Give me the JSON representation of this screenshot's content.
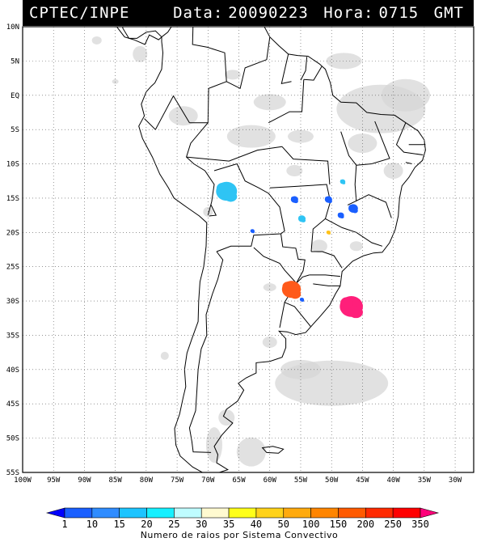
{
  "header": {
    "org": "CPTEC/INPE",
    "date_label": "Data:",
    "date_value": "20090223",
    "hour_label": "Hora:",
    "hour_value": "0715",
    "tz": "GMT"
  },
  "map": {
    "lat_labels": [
      "10N",
      "5N",
      "EQ",
      "5S",
      "10S",
      "15S",
      "20S",
      "25S",
      "30S",
      "35S",
      "40S",
      "45S",
      "50S",
      "55S"
    ],
    "lon_labels": [
      "100W",
      "95W",
      "90W",
      "85W",
      "80W",
      "75W",
      "70W",
      "65W",
      "60W",
      "55W",
      "50W",
      "45W",
      "40W",
      "35W",
      "30W"
    ],
    "lat_range": [
      10,
      -55
    ],
    "lon_range": [
      -100,
      -27
    ]
  },
  "colorbar": {
    "title": "Numero de raios por Sistema Convectivo",
    "ticks": [
      "1",
      "10",
      "15",
      "20",
      "25",
      "30",
      "35",
      "40",
      "50",
      "100",
      "150",
      "200",
      "250",
      "350"
    ],
    "colors": [
      "#0000ff",
      "#1a5fff",
      "#2f8cff",
      "#1dc4ff",
      "#16f0ff",
      "#bffcff",
      "#fffad0",
      "#ffff1a",
      "#ffd21a",
      "#ffaa0e",
      "#ff8500",
      "#ff5a00",
      "#ff2a00",
      "#ff0000",
      "#ff007a"
    ]
  },
  "systems": [
    {
      "name": "convective-system-bolivia",
      "color": "#2fc4f4",
      "lon": -67,
      "lat": -14,
      "size": 1.0
    },
    {
      "name": "convective-system-argentina-ne",
      "color": "#ff5a1a",
      "lon": -56.5,
      "lat": -28.3,
      "size": 0.9
    },
    {
      "name": "convective-system-atlantic-south",
      "color": "#ff1f7a",
      "lon": -46.8,
      "lat": -30.8,
      "size": 1.1
    },
    {
      "name": "convective-system-brazil-central-1",
      "color": "#1a5fff",
      "lon": -56,
      "lat": -15.2,
      "size": 0.35
    },
    {
      "name": "convective-system-brazil-central-2",
      "color": "#1a5fff",
      "lon": -50.5,
      "lat": -15.2,
      "size": 0.35
    },
    {
      "name": "convective-system-brazil-east",
      "color": "#1a5fff",
      "lon": -46.5,
      "lat": -16.5,
      "size": 0.45
    },
    {
      "name": "convective-system-brazil-east-2",
      "color": "#1a5fff",
      "lon": -48.5,
      "lat": -17.5,
      "size": 0.3
    },
    {
      "name": "convective-system-brazil-north",
      "color": "#2fc4f4",
      "lon": -48.2,
      "lat": -12.6,
      "size": 0.25
    },
    {
      "name": "convective-system-mato-grosso",
      "color": "#2fc4f4",
      "lon": -54.8,
      "lat": -18,
      "size": 0.35
    },
    {
      "name": "convective-system-paraguay",
      "color": "#1a5fff",
      "lon": -62.8,
      "lat": -19.8,
      "size": 0.2
    },
    {
      "name": "convective-system-sao-paulo",
      "color": "#ffc21a",
      "lon": -50.5,
      "lat": -20,
      "size": 0.2
    },
    {
      "name": "convective-system-uruguay",
      "color": "#1a5fff",
      "lon": -54.8,
      "lat": -29.8,
      "size": 0.2
    }
  ]
}
